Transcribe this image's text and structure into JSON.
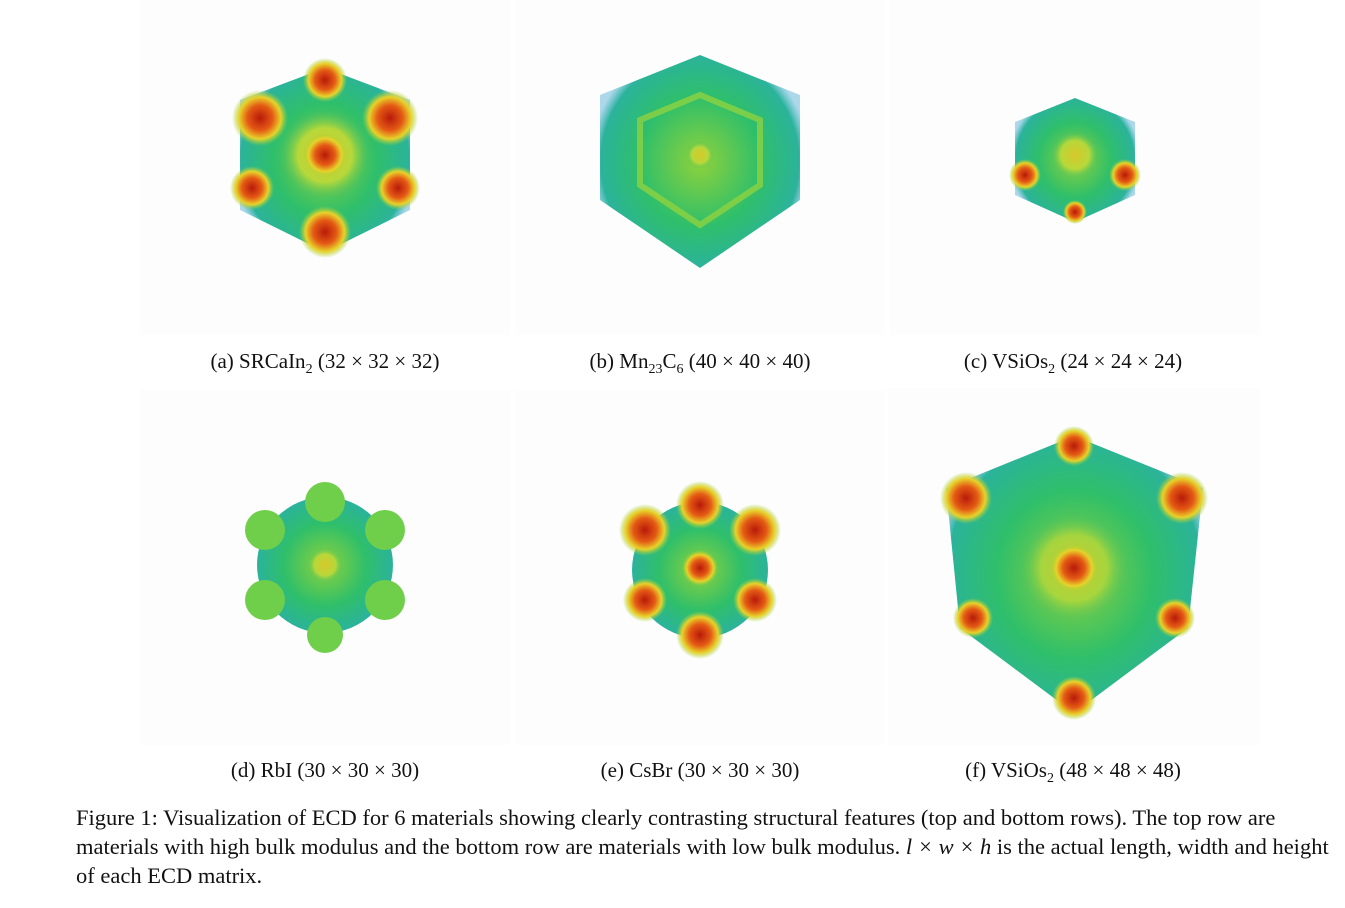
{
  "panels": [
    {
      "label": "(a)",
      "name": "SRCaIn",
      "sub": "2",
      "dims": "(32 × 32 × 32)"
    },
    {
      "label": "(b)",
      "name": "Mn",
      "sub": "23",
      "name2": "C",
      "sub2": "6",
      "dims": "(40 × 40 × 40)"
    },
    {
      "label": "(c)",
      "name": "VSiOs",
      "sub": "2",
      "dims": "(24 × 24 × 24)"
    },
    {
      "label": "(d)",
      "name": "RbI",
      "dims": "(30 × 30 × 30)"
    },
    {
      "label": "(e)",
      "name": "CsBr",
      "dims": "(30 × 30 × 30)"
    },
    {
      "label": "(f)",
      "name": "VSiOs",
      "sub": "2",
      "dims": "(48 × 48 × 48)"
    }
  ],
  "caption": {
    "prefix": "Figure 1:",
    "text1": "Visualization of ECD for 6 materials showing clearly contrasting structural features (top and bottom rows). The top row are materials with high bulk modulus and the bottom row are materials with low bulk modulus.",
    "math": "l × w × h",
    "text2": "is the actual length, width and height of each ECD matrix."
  },
  "colors": {
    "green": "#2fbf6a",
    "yellow": "#d8e23a",
    "red": "#c8260e",
    "orange": "#e8641a",
    "cyan": "#3aa6c4"
  }
}
